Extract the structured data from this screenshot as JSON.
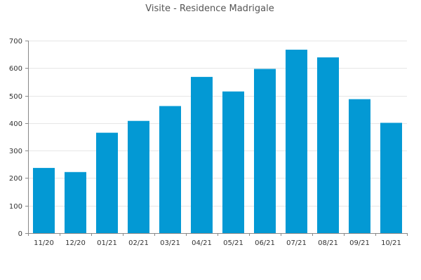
{
  "chart_data": {
    "type": "bar",
    "title": "Visite - Residence Madrigale",
    "xlabel": "",
    "ylabel": "",
    "categories": [
      "11/20",
      "12/20",
      "01/21",
      "02/21",
      "03/21",
      "04/21",
      "05/21",
      "06/21",
      "07/21",
      "08/21",
      "09/21",
      "10/21"
    ],
    "values": [
      237,
      222,
      365,
      408,
      462,
      568,
      515,
      597,
      667,
      639,
      487,
      401
    ],
    "ylim": [
      0,
      700
    ],
    "yticks": [
      "0",
      "100",
      "200",
      "300",
      "400",
      "500",
      "600",
      "700"
    ],
    "grid": true,
    "legend": "none",
    "bar_color": "#0399d4"
  }
}
